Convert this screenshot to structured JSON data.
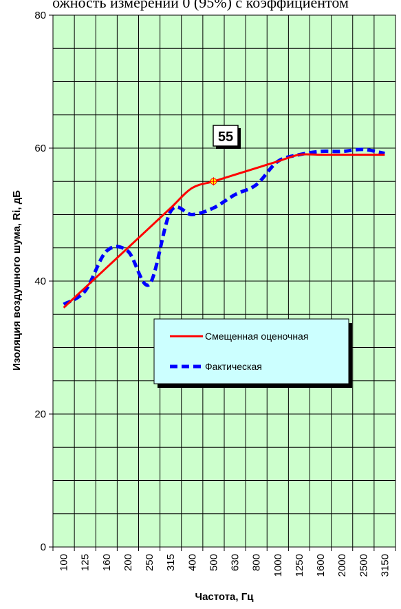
{
  "header": {
    "title": "ожность измерений 0 (95%) с коэффициентом"
  },
  "chart_data": {
    "type": "line",
    "xlabel": "Частота, Гц",
    "ylabel": "Изоляция воздушного шума, Ri, дБ",
    "ylim": [
      0,
      80
    ],
    "yticks": [
      0,
      20,
      40,
      60,
      80
    ],
    "grid": true,
    "background_color": "#ccffcc",
    "legend_position": "center",
    "legend_background": "#ccffff",
    "categories": [
      "100",
      "125",
      "160",
      "200",
      "250",
      "315",
      "400",
      "500",
      "630",
      "800",
      "1000",
      "1250",
      "1600",
      "2000",
      "2500",
      "3150"
    ],
    "series": [
      {
        "name": "Смещенная оценочная",
        "color": "#ff0000",
        "style": "solid",
        "values": [
          36,
          39,
          42,
          45,
          48,
          51,
          54,
          55,
          56,
          57,
          58,
          59,
          59,
          59,
          59,
          59
        ]
      },
      {
        "name": "Фактическая",
        "color": "#0000ff",
        "style": "dashed",
        "values": [
          36.5,
          38.5,
          44.5,
          44.5,
          39.5,
          50.5,
          50,
          51,
          53,
          54.5,
          58,
          59,
          59.5,
          59.5,
          59.8,
          59.2
        ]
      }
    ],
    "annotation": {
      "label": "55",
      "category": "500",
      "value": 55,
      "marker_color": "#ffff00"
    }
  }
}
